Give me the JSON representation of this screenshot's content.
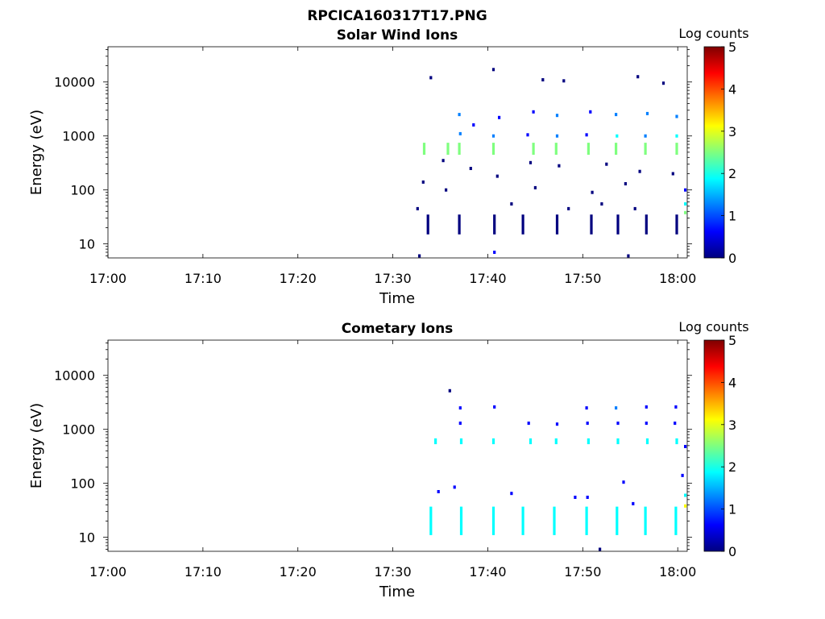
{
  "figure": {
    "title": "RPCICA160317T17.PNG"
  },
  "colormap": [
    "#00007f",
    "#0000ff",
    "#007fff",
    "#00ffff",
    "#7fff7f",
    "#ffff00",
    "#ff7f00",
    "#ff0000",
    "#7f0000"
  ],
  "chart_data": [
    {
      "type": "heatmap",
      "title": "Solar Wind Ions",
      "xlabel": "Time",
      "ylabel": "Energy (eV)",
      "x_ticks": [
        "17:00",
        "17:10",
        "17:20",
        "17:30",
        "17:40",
        "17:50",
        "18:00"
      ],
      "xlim_minutes_after_17": [
        0,
        61
      ],
      "y_scale": "log",
      "y_ticks": [
        "10",
        "100",
        "1000",
        "10000"
      ],
      "ylim": [
        5.5,
        45000
      ],
      "colorbar": {
        "title": "Log counts",
        "ticks": [
          "0",
          "1",
          "2",
          "3",
          "4",
          "5"
        ],
        "range": [
          0,
          5
        ]
      },
      "bands": [
        {
          "energy": [
            450,
            750
          ],
          "minutes": [
            33.3,
            35.8,
            37.0,
            40.6,
            44.8,
            47.2,
            50.6,
            53.5,
            56.6,
            59.9
          ],
          "level": 2.6
        },
        {
          "energy": [
            15,
            35
          ],
          "minutes": [
            33.7,
            37.0,
            40.7,
            43.7,
            47.3,
            50.9,
            53.7,
            56.7,
            59.9
          ],
          "level": 0.3
        }
      ],
      "points": [
        [
          34.0,
          12000,
          0.2
        ],
        [
          40.6,
          17000,
          0.3
        ],
        [
          45.8,
          11000,
          0.2
        ],
        [
          48.0,
          10500,
          0.2
        ],
        [
          55.8,
          12500,
          0.2
        ],
        [
          58.5,
          9500,
          0.2
        ],
        [
          37.0,
          2500,
          1.3
        ],
        [
          38.5,
          1600,
          0.8
        ],
        [
          41.2,
          2200,
          0.6
        ],
        [
          44.8,
          2800,
          0.4
        ],
        [
          47.3,
          2400,
          1.4
        ],
        [
          50.8,
          2800,
          0.6
        ],
        [
          53.5,
          2500,
          1.5
        ],
        [
          56.8,
          2600,
          1.4
        ],
        [
          59.9,
          2300,
          1.1
        ],
        [
          37.1,
          1100,
          1.4
        ],
        [
          40.6,
          1000,
          1.3
        ],
        [
          44.2,
          1050,
          0.7
        ],
        [
          47.3,
          1000,
          1.2
        ],
        [
          50.4,
          1050,
          0.7
        ],
        [
          53.6,
          1000,
          1.8
        ],
        [
          56.6,
          1000,
          1.2
        ],
        [
          59.9,
          1000,
          1.7
        ],
        [
          35.3,
          350,
          0.3
        ],
        [
          38.2,
          250,
          0.2
        ],
        [
          44.5,
          320,
          0.3
        ],
        [
          47.5,
          280,
          0.3
        ],
        [
          52.5,
          300,
          0.2
        ],
        [
          56.0,
          220,
          0.2
        ],
        [
          59.5,
          200,
          0.3
        ],
        [
          33.2,
          140,
          0.2
        ],
        [
          35.6,
          100,
          0.2
        ],
        [
          41.0,
          180,
          0.3
        ],
        [
          45.0,
          110,
          0.2
        ],
        [
          51.0,
          90,
          0.2
        ],
        [
          54.5,
          130,
          0.2
        ],
        [
          60.8,
          100,
          0.8
        ],
        [
          32.6,
          45,
          0.3
        ],
        [
          42.5,
          55,
          0.2
        ],
        [
          48.5,
          45,
          0.2
        ],
        [
          52.0,
          55,
          0.2
        ],
        [
          55.5,
          45,
          0.2
        ],
        [
          40.7,
          7,
          0.4
        ],
        [
          32.8,
          6,
          0.2
        ],
        [
          54.8,
          6,
          0.2
        ],
        [
          60.8,
          38,
          2.3
        ],
        [
          60.8,
          55,
          1.6
        ]
      ]
    },
    {
      "type": "heatmap",
      "title": "Cometary Ions",
      "xlabel": "Time",
      "ylabel": "Energy (eV)",
      "x_ticks": [
        "17:00",
        "17:10",
        "17:20",
        "17:30",
        "17:40",
        "17:50",
        "18:00"
      ],
      "xlim_minutes_after_17": [
        0,
        61
      ],
      "y_scale": "log",
      "y_ticks": [
        "10",
        "100",
        "1000",
        "10000"
      ],
      "ylim": [
        5.5,
        45000
      ],
      "colorbar": {
        "title": "Log counts",
        "ticks": [
          "0",
          "1",
          "2",
          "3",
          "4",
          "5"
        ],
        "range": [
          0,
          5
        ]
      },
      "bands": [
        {
          "energy": [
            530,
            680
          ],
          "minutes": [
            34.5,
            37.2,
            40.6,
            44.5,
            47.2,
            50.6,
            53.7,
            56.8,
            59.9
          ],
          "level": 1.8
        },
        {
          "energy": [
            11,
            37
          ],
          "minutes": [
            34.0,
            37.2,
            40.6,
            43.7,
            47.0,
            50.4,
            53.6,
            56.6,
            59.8
          ],
          "level": 1.8
        }
      ],
      "points": [
        [
          36.0,
          5200,
          0.3
        ],
        [
          37.1,
          2500,
          0.8
        ],
        [
          40.7,
          2600,
          0.6
        ],
        [
          50.4,
          2500,
          0.7
        ],
        [
          53.5,
          2500,
          1.0
        ],
        [
          56.7,
          2600,
          0.8
        ],
        [
          59.8,
          2600,
          0.7
        ],
        [
          37.1,
          1300,
          0.9
        ],
        [
          44.3,
          1300,
          0.6
        ],
        [
          47.3,
          1250,
          0.6
        ],
        [
          50.5,
          1300,
          0.7
        ],
        [
          53.7,
          1300,
          0.9
        ],
        [
          56.7,
          1300,
          0.7
        ],
        [
          59.7,
          1300,
          0.7
        ],
        [
          60.8,
          480,
          0.9
        ],
        [
          60.5,
          140,
          0.8
        ],
        [
          34.8,
          70,
          0.6
        ],
        [
          36.5,
          85,
          0.6
        ],
        [
          42.5,
          65,
          0.5
        ],
        [
          49.2,
          55,
          0.6
        ],
        [
          50.5,
          55,
          0.7
        ],
        [
          54.3,
          105,
          0.5
        ],
        [
          55.3,
          42,
          0.5
        ],
        [
          60.8,
          38,
          3.0
        ],
        [
          60.8,
          60,
          2.1
        ],
        [
          51.8,
          6,
          0.3
        ]
      ]
    }
  ]
}
